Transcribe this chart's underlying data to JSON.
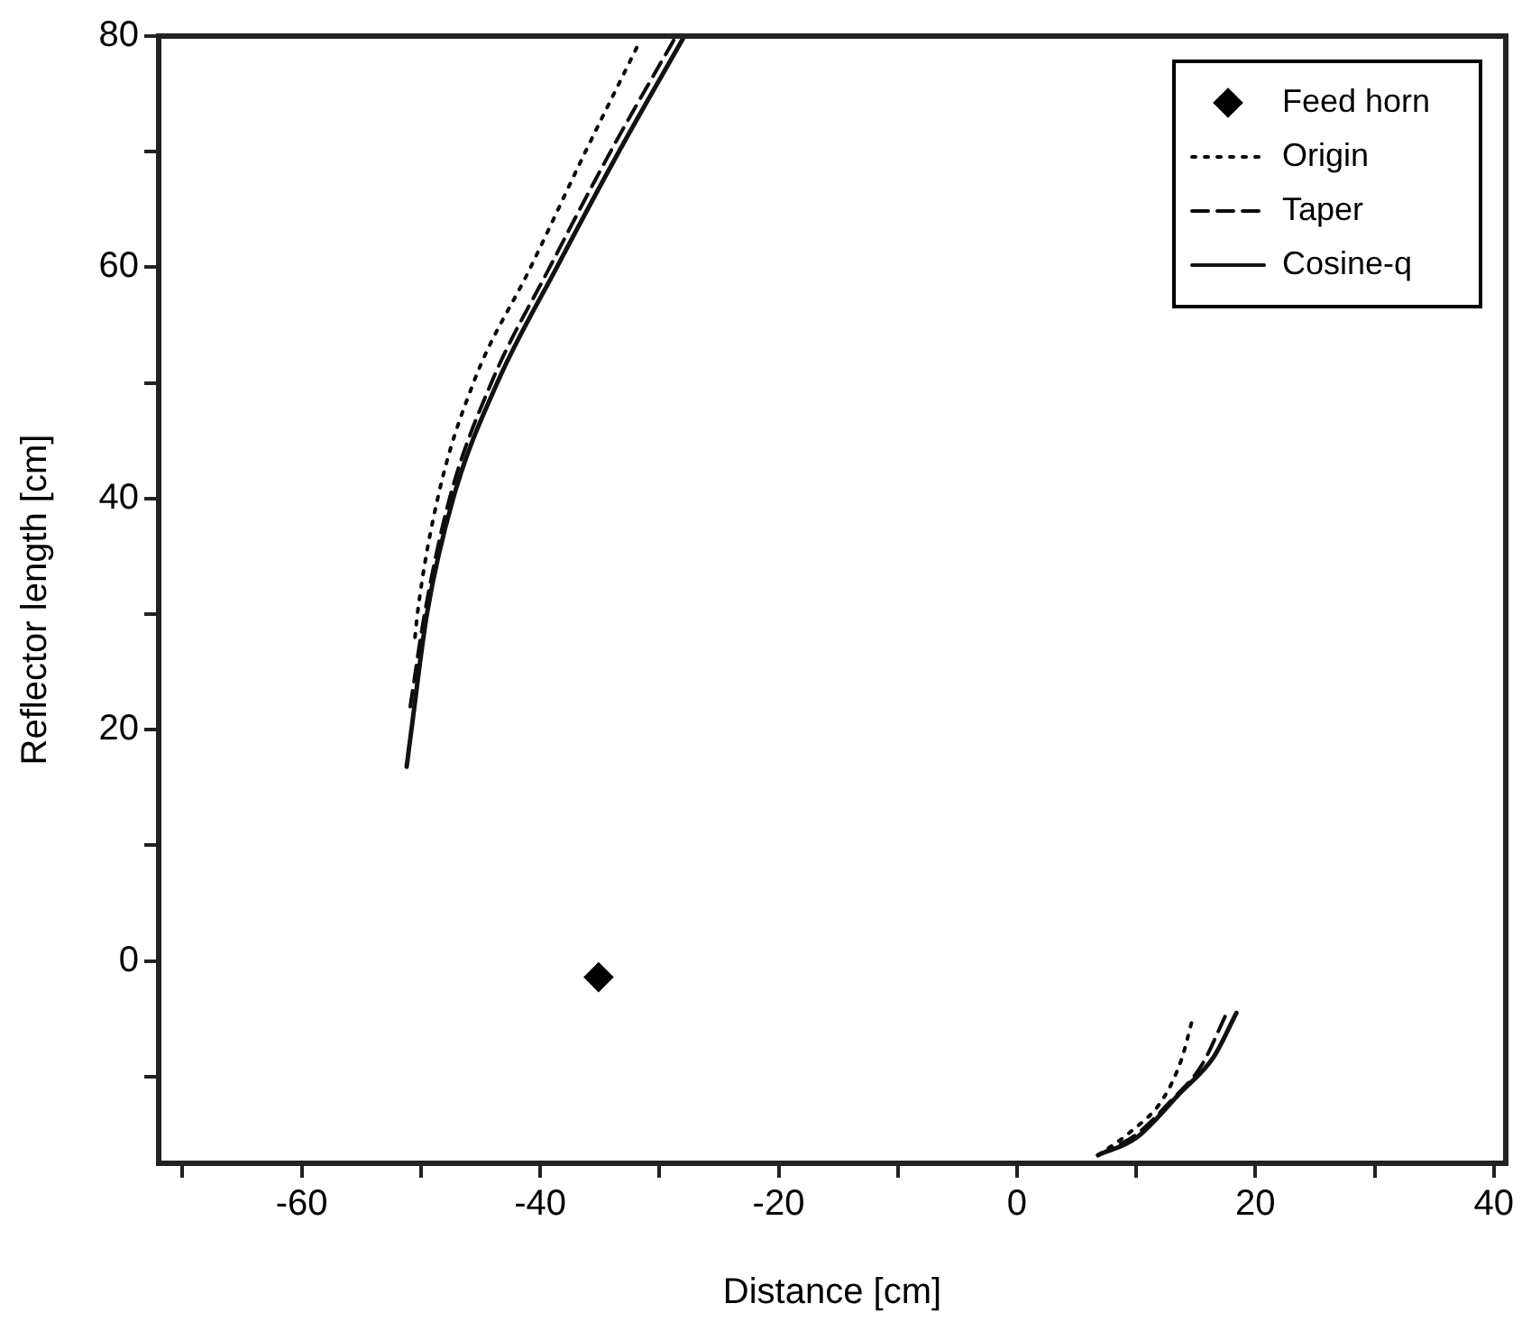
{
  "chart_data": {
    "type": "line",
    "xlabel": "Distance [cm]",
    "ylabel": "Reflector length [cm]",
    "xlim": [
      -72,
      41
    ],
    "xticks": [
      {
        "value": -70,
        "label": null
      },
      -60,
      {
        "value": -50,
        "label": null
      },
      -40,
      {
        "value": -30,
        "label": null
      },
      -20,
      {
        "value": -10,
        "label": null
      },
      0,
      {
        "value": 10,
        "label": null
      },
      20,
      {
        "value": 30,
        "label": null
      },
      40
    ],
    "ylim": [
      -17.5,
      80
    ],
    "yticks": [
      {
        "value": -10,
        "label": null
      },
      0,
      {
        "value": 10,
        "label": null
      },
      20,
      {
        "value": 30,
        "label": null
      },
      40,
      {
        "value": 50,
        "label": null
      },
      60,
      {
        "value": 70,
        "label": null
      },
      80
    ],
    "grid": false,
    "legend": "top right",
    "series": [
      {
        "name": "Feed horn",
        "type": "scatter",
        "marker": "diamond",
        "color": "#000000",
        "x": [
          -35.1
        ],
        "values": [
          -1.4
        ]
      },
      {
        "name": "Origin",
        "type": "line",
        "line_style": "dotted",
        "marker": "none",
        "color": "#060606",
        "x": [
          -50.5,
          -50.3,
          -48.6,
          -45.6,
          -40.8,
          -36.2,
          -31.9,
          null,
          6.8,
          9.5,
          12.2,
          13.8,
          14.8
        ],
        "values": [
          28,
          30,
          40,
          50,
          60,
          70,
          79,
          null,
          -16.8,
          -14.8,
          -12,
          -8.5,
          -4.7
        ]
      },
      {
        "name": "Taper",
        "type": "line",
        "line_style": "dashed",
        "marker": "none",
        "color": "#0c0c0c",
        "x": [
          -50.9,
          -49.7,
          -47.6,
          -44.1,
          -39.2,
          -34.1,
          -28.6,
          null,
          6.8,
          10,
          13,
          15.5,
          17.5
        ],
        "values": [
          22,
          30,
          40,
          50,
          60,
          70,
          80,
          null,
          -16.8,
          -15,
          -12,
          -9,
          -4.7
        ]
      },
      {
        "name": "Cosine-q",
        "type": "line",
        "line_style": "solid",
        "marker": "none",
        "color": "#121212",
        "x": [
          -51.2,
          -50.8,
          -49.5,
          -47.3,
          -43.6,
          -38.6,
          -33.4,
          -27.9,
          null,
          6.8,
          10,
          13.7,
          16.5,
          18.4
        ],
        "values": [
          16.8,
          20,
          30,
          40,
          50,
          60,
          70,
          80,
          null,
          -16.8,
          -15.3,
          -11.4,
          -8.3,
          -4.5
        ]
      }
    ]
  }
}
